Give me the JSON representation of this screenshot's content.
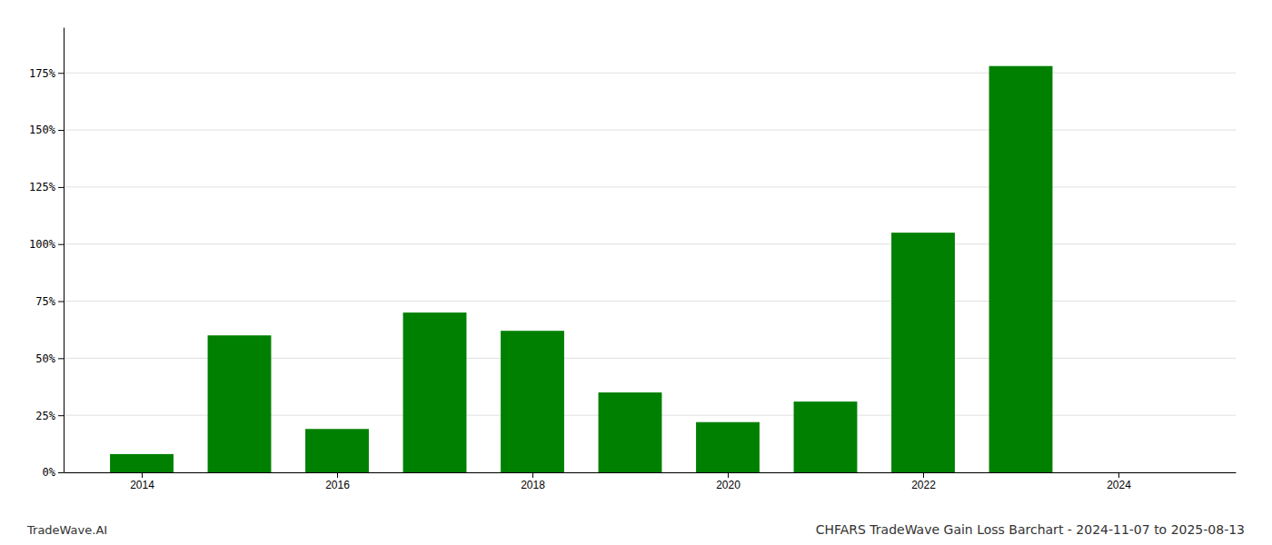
{
  "chart_data": {
    "type": "bar",
    "title": "CHFARS TradeWave Gain Loss Barchart - 2024-11-07 to 2025-08-13",
    "annotations": [
      "TradeWave.AI"
    ],
    "x": [
      2014,
      2015,
      2016,
      2017,
      2018,
      2019,
      2020,
      2021,
      2022,
      2023,
      2024
    ],
    "values": [
      0.08,
      0.6,
      0.19,
      0.7,
      0.62,
      0.35,
      0.22,
      0.31,
      1.05,
      1.78,
      0.0
    ],
    "color": "#008000",
    "xlim": [
      2013.2,
      2025.2
    ],
    "xticks": [
      2014,
      2016,
      2018,
      2020,
      2022,
      2024
    ],
    "ylim": [
      0.0,
      1.95
    ],
    "yticks": [
      {
        "value": 0.0,
        "label": "0%"
      },
      {
        "value": 0.25,
        "label": "25%"
      },
      {
        "value": 0.5,
        "label": "50%"
      },
      {
        "value": 0.75,
        "label": "75%"
      },
      {
        "value": 1.0,
        "label": "100%"
      },
      {
        "value": 1.25,
        "label": "125%"
      },
      {
        "value": 1.5,
        "label": "150%"
      },
      {
        "value": 1.75,
        "label": "175%"
      }
    ],
    "grid": true
  }
}
